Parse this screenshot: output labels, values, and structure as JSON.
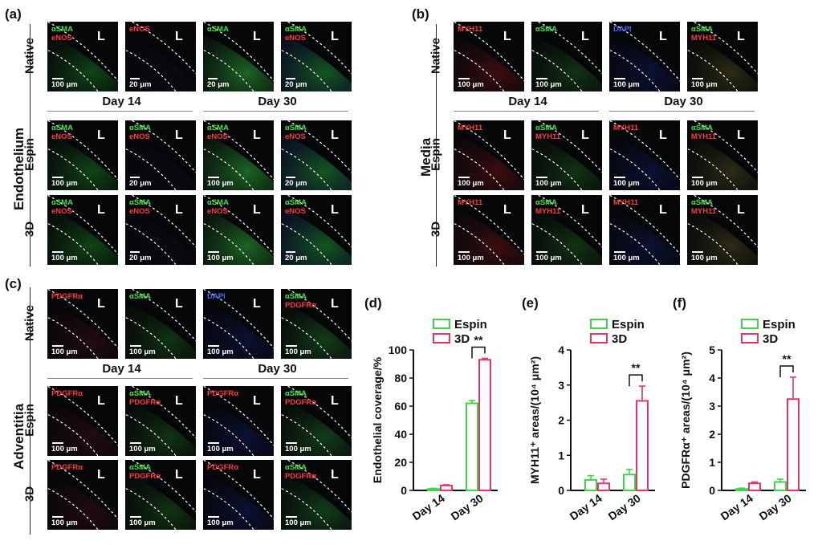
{
  "figure": {
    "panel_letters": {
      "a": "(a)",
      "b": "(b)",
      "c": "(c)",
      "d": "(d)",
      "e": "(e)",
      "f": "(f)"
    },
    "section_labels": {
      "a": "Endothelium",
      "b": "Media",
      "c": "Adventitia"
    },
    "row_labels": {
      "native": "Native",
      "espin": "Espin",
      "3d": "3D"
    },
    "col_labels": {
      "day14": "Day 14",
      "day30": "Day 30"
    },
    "lumen": "L",
    "panel_a": [
      [
        {
          "s": [
            [
              "αSMA",
              "g"
            ],
            [
              "eNOS",
              "r"
            ]
          ],
          "sc": "100 μm"
        },
        {
          "s": [
            [
              "eNOS",
              "r"
            ]
          ],
          "sc": "20 μm"
        },
        {
          "s": [
            [
              "αSMA",
              "g"
            ]
          ],
          "sc": "20 μm"
        },
        {
          "s": [
            [
              "αSMA",
              "g"
            ],
            [
              "eNOS",
              "r"
            ]
          ],
          "sc": "20 μm"
        }
      ],
      [
        {
          "s": [
            [
              "αSMA",
              "g"
            ],
            [
              "eNOS",
              "r"
            ]
          ],
          "sc": "100 μm"
        },
        {
          "s": [
            [
              "αSMA",
              "g"
            ],
            [
              "eNOS",
              "r"
            ]
          ],
          "sc": "20 μm"
        },
        {
          "s": [
            [
              "αSMA",
              "g"
            ],
            [
              "eNOS",
              "r"
            ]
          ],
          "sc": "100 μm"
        },
        {
          "s": [
            [
              "αSMA",
              "g"
            ],
            [
              "eNOS",
              "r"
            ]
          ],
          "sc": "20 μm"
        }
      ],
      [
        {
          "s": [
            [
              "αSMA",
              "g"
            ],
            [
              "eNOS",
              "r"
            ]
          ],
          "sc": "100 μm"
        },
        {
          "s": [
            [
              "αSMA",
              "g"
            ],
            [
              "eNOS",
              "r"
            ]
          ],
          "sc": "20 μm"
        },
        {
          "s": [
            [
              "αSMA",
              "g"
            ],
            [
              "eNOS",
              "r"
            ]
          ],
          "sc": "100 μm"
        },
        {
          "s": [
            [
              "αSMA",
              "g"
            ],
            [
              "eNOS",
              "r"
            ]
          ],
          "sc": "20 μm"
        }
      ]
    ],
    "panel_b": [
      [
        {
          "s": [
            [
              "MYH11",
              "r"
            ]
          ],
          "sc": "100 μm"
        },
        {
          "s": [
            [
              "αSMA",
              "g"
            ]
          ],
          "sc": "100 μm"
        },
        {
          "s": [
            [
              "DAPI",
              "b"
            ]
          ],
          "sc": "100 μm"
        },
        {
          "s": [
            [
              "αSMA",
              "g"
            ],
            [
              "MYH11",
              "r"
            ]
          ],
          "sc": "100 μm"
        }
      ],
      [
        {
          "s": [
            [
              "MYH11",
              "r"
            ]
          ],
          "sc": "100 μm"
        },
        {
          "s": [
            [
              "αSMA",
              "g"
            ],
            [
              "MYH11",
              "r"
            ]
          ],
          "sc": "100 μm"
        },
        {
          "s": [
            [
              "MYH11",
              "r"
            ]
          ],
          "sc": "100 μm"
        },
        {
          "s": [
            [
              "αSMA",
              "g"
            ],
            [
              "MYH11",
              "r"
            ]
          ],
          "sc": "100 μm"
        }
      ],
      [
        {
          "s": [
            [
              "MYH11",
              "r"
            ]
          ],
          "sc": "100 μm"
        },
        {
          "s": [
            [
              "αSMA",
              "g"
            ],
            [
              "MYH11",
              "r"
            ]
          ],
          "sc": "100 μm"
        },
        {
          "s": [
            [
              "MYH11",
              "r"
            ]
          ],
          "sc": "100 μm"
        },
        {
          "s": [
            [
              "αSMA",
              "g"
            ],
            [
              "MYH11",
              "r"
            ]
          ],
          "sc": "100 μm"
        }
      ]
    ],
    "panel_c": [
      [
        {
          "s": [
            [
              "PDGFRα",
              "r"
            ]
          ],
          "sc": "100 μm"
        },
        {
          "s": [
            [
              "αSMA",
              "g"
            ]
          ],
          "sc": "100 μm"
        },
        {
          "s": [
            [
              "DAPI",
              "b"
            ]
          ],
          "sc": "100 μm"
        },
        {
          "s": [
            [
              "αSMA",
              "g"
            ],
            [
              "PDGFRα",
              "r"
            ]
          ],
          "sc": "100 μm"
        }
      ],
      [
        {
          "s": [
            [
              "PDGFRα",
              "r"
            ]
          ],
          "sc": "100 μm"
        },
        {
          "s": [
            [
              "αSMA",
              "g"
            ],
            [
              "PDGFRα",
              "r"
            ]
          ],
          "sc": "100 μm"
        },
        {
          "s": [
            [
              "PDGFRα",
              "r"
            ]
          ],
          "sc": "100 μm"
        },
        {
          "s": [
            [
              "αSMA",
              "g"
            ],
            [
              "PDGFRα",
              "r"
            ]
          ],
          "sc": "100 μm"
        }
      ],
      [
        {
          "s": [
            [
              "PDGFRα",
              "r"
            ]
          ],
          "sc": "100 μm"
        },
        {
          "s": [
            [
              "αSMA",
              "g"
            ],
            [
              "PDGFRα",
              "r"
            ]
          ],
          "sc": "100 μm"
        },
        {
          "s": [
            [
              "PDGFRα",
              "r"
            ]
          ],
          "sc": "100 μm"
        },
        {
          "s": [
            [
              "αSMA",
              "g"
            ],
            [
              "PDGFRα",
              "r"
            ]
          ],
          "sc": "100 μm"
        }
      ]
    ]
  },
  "colors": {
    "espin": "#3fd34a",
    "three_d": "#e0356a",
    "green_stain": "#46e24a",
    "red_stain": "#ff3b3b",
    "blue_stain": "#4a68ff"
  },
  "chart_data": [
    {
      "id": "d",
      "type": "bar",
      "categories": [
        "Day 14",
        "Day 30"
      ],
      "series": [
        {
          "name": "Espin",
          "values": [
            1,
            62
          ],
          "errors": [
            0.5,
            2
          ]
        },
        {
          "name": "3D",
          "values": [
            3.5,
            93
          ],
          "errors": [
            0.5,
            1
          ]
        }
      ],
      "ylabel": "Endothelial coverage/%",
      "ylim": [
        0,
        100
      ],
      "yticks": [
        "0",
        "20",
        "40",
        "60",
        "80",
        "100"
      ],
      "significance": "**",
      "legend": "top"
    },
    {
      "id": "e",
      "type": "bar",
      "categories": [
        "Day 14",
        "Day 30"
      ],
      "series": [
        {
          "name": "Espin",
          "values": [
            0.3,
            0.45
          ],
          "errors": [
            0.12,
            0.15
          ]
        },
        {
          "name": "3D",
          "values": [
            0.2,
            2.55
          ],
          "errors": [
            0.12,
            0.42
          ]
        }
      ],
      "ylabel": "MYH11⁺ areas/(10⁴ μm²)",
      "ylim": [
        0,
        4
      ],
      "yticks": [
        "0",
        "1",
        "2",
        "3",
        "4"
      ],
      "significance": "**",
      "legend": "top"
    },
    {
      "id": "f",
      "type": "bar",
      "categories": [
        "Day 14",
        "Day 30"
      ],
      "series": [
        {
          "name": "Espin",
          "values": [
            0.05,
            0.3
          ],
          "errors": [
            0.03,
            0.1
          ]
        },
        {
          "name": "3D",
          "values": [
            0.25,
            3.25
          ],
          "errors": [
            0.05,
            0.78
          ]
        }
      ],
      "ylabel": "PDGFRα⁺ areas/(10⁴ μm²)",
      "ylim": [
        0,
        5
      ],
      "yticks": [
        "0",
        "1",
        "2",
        "3",
        "4",
        "5"
      ],
      "significance": "**",
      "legend": "top"
    }
  ]
}
